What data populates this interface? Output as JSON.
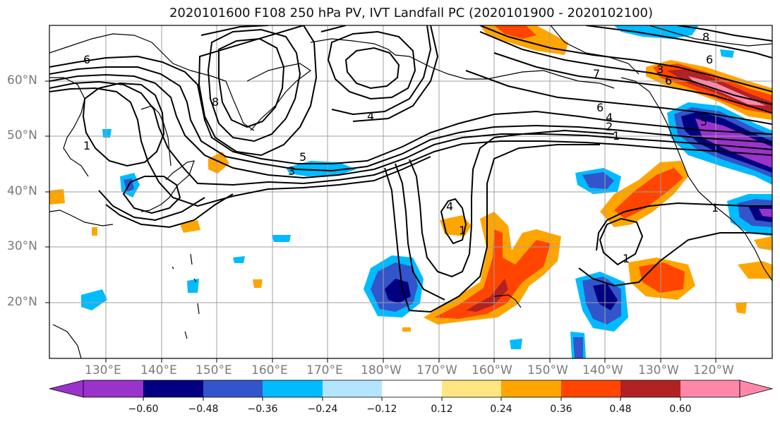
{
  "title": "2020101600 F108 250 hPa PV, IVT Landfall PC (2020101900 - 2020102100)",
  "lat_labels": [
    "60°N",
    "50°N",
    "40°N",
    "30°N",
    "20°N"
  ],
  "lon_labels": [
    "130°E",
    "140°E",
    "150°E",
    "160°E",
    "170°E",
    "180°W",
    "170°W",
    "160°W",
    "150°W",
    "140°W",
    "130°W",
    "120°W"
  ],
  "contour_labels": [
    "6",
    "8",
    "4",
    "5",
    "3",
    "1",
    "7",
    "6",
    "4",
    "2",
    "1",
    "8",
    "6",
    "3",
    "6",
    "5",
    "1",
    "4",
    "1",
    "1"
  ],
  "colorbar": {
    "tick_labels": [
      "−0.60",
      "−0.48",
      "−0.36",
      "−0.24",
      "−0.12",
      "0.12",
      "0.24",
      "0.36",
      "0.48",
      "0.60"
    ],
    "colors": [
      "#9933cc",
      "#000080",
      "#3355cc",
      "#00bbff",
      "#b3e5ff",
      "#ffffff",
      "#ffe680",
      "#ffa500",
      "#ff4500",
      "#b22222",
      "#ff88aa",
      "#ff88aa"
    ]
  }
}
